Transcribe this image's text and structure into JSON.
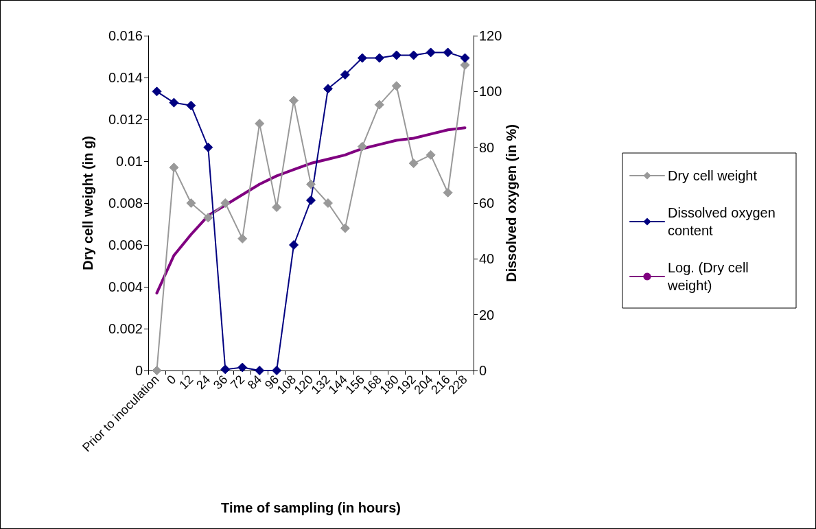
{
  "chart_data": {
    "type": "line",
    "xlabel": "Time of sampling (in hours)",
    "ylabel": "Dry cell weight (in g)",
    "y2label": "Dissolved oxygen (in %)",
    "categories": [
      "Prior to inoculation",
      "0",
      "12",
      "24",
      "36",
      "72",
      "84",
      "96",
      "108",
      "120",
      "132",
      "144",
      "156",
      "168",
      "180",
      "192",
      "204",
      "216",
      "228"
    ],
    "series": [
      {
        "name": "Dry cell weight",
        "color": "#999999",
        "values": [
          0,
          0.0097,
          0.008,
          0.0073,
          0.008,
          0.0063,
          0.0118,
          0.0078,
          0.0129,
          0.0089,
          0.008,
          0.0068,
          0.0107,
          0.0127,
          0.0136,
          0.0099,
          0.0103,
          0.0085,
          0.0146
        ]
      },
      {
        "name": "Dissolved oxygen content",
        "color": "#000080",
        "axis": "y2",
        "values": [
          100,
          96,
          95,
          80,
          0.4,
          1.1,
          0,
          0,
          45,
          61,
          101,
          106,
          112,
          112,
          113,
          113,
          114,
          114,
          112
        ]
      },
      {
        "name": "Log. (Dry cell weight)",
        "color": "#800080",
        "marker": "none",
        "values": [
          0.0037,
          0.0055,
          0.0065,
          0.0074,
          0.0079,
          0.0084,
          0.0089,
          0.0093,
          0.0096,
          0.0099,
          0.0101,
          0.0103,
          0.0106,
          0.0108,
          0.011,
          0.0111,
          0.0113,
          0.0115,
          0.0116
        ]
      }
    ],
    "ylim": [
      0,
      0.016
    ],
    "yticks": [
      0,
      0.002,
      0.004,
      0.006,
      0.008,
      0.01,
      0.012,
      0.014,
      0.016
    ],
    "y2lim": [
      0,
      120
    ],
    "y2ticks": [
      0,
      20,
      40,
      60,
      80,
      100,
      120
    ],
    "marker": "diamond",
    "line_style": "solid",
    "grid": false,
    "legend": "right"
  }
}
